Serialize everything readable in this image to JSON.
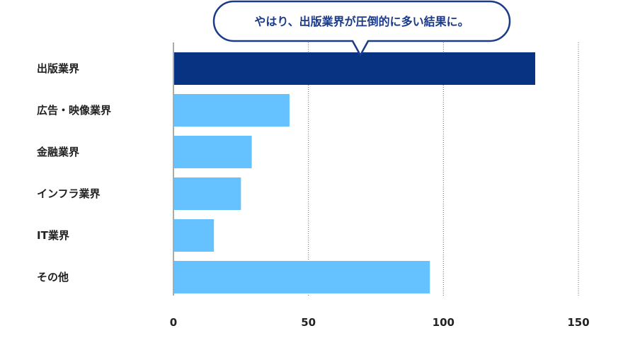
{
  "callout": {
    "text": "やはり、出版業界が圧倒的に多い結果に。"
  },
  "colors": {
    "highlight": "#073382",
    "bar": "#66c2ff",
    "axis": "#555555",
    "grid": "#666666",
    "callout_border": "#1a3a8a",
    "callout_text": "#1a3a8a"
  },
  "chart_data": {
    "type": "bar",
    "orientation": "horizontal",
    "categories": [
      "出版業界",
      "広告・映像業界",
      "金融業界",
      "インフラ業界",
      "IT業界",
      "その他"
    ],
    "values": [
      134,
      43,
      29,
      25,
      15,
      95
    ],
    "highlight_index": 0,
    "xlim": [
      0,
      150
    ],
    "x_ticks": [
      0,
      50,
      100,
      150
    ],
    "grid": "vertical-dotted",
    "title": "",
    "xlabel": "",
    "ylabel": ""
  }
}
